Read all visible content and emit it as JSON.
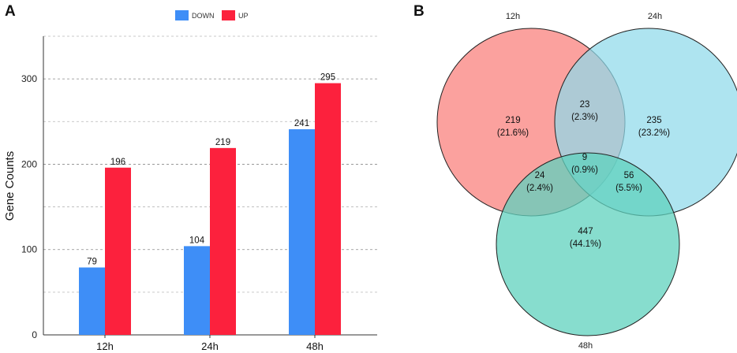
{
  "panels": {
    "a": "A",
    "b": "B"
  },
  "chart_data": [
    {
      "type": "bar",
      "panel": "A",
      "title": "",
      "xlabel": "",
      "ylabel": "Gene Counts",
      "ylim": [
        0,
        350
      ],
      "yticks": [
        0,
        100,
        200,
        300
      ],
      "grid": true,
      "legend_position": "top-center",
      "categories": [
        "12h",
        "24h",
        "48h"
      ],
      "series": [
        {
          "name": "DOWN",
          "color": "#3e8ef7",
          "values": [
            79,
            104,
            241
          ]
        },
        {
          "name": "UP",
          "color": "#fc213d",
          "values": [
            196,
            219,
            295
          ]
        }
      ]
    },
    {
      "type": "venn",
      "panel": "B",
      "sets": [
        {
          "name": "12h",
          "color": "#fa8783"
        },
        {
          "name": "24h",
          "color": "#8fd9ea"
        },
        {
          "name": "48h",
          "color": "#5fd2bd"
        }
      ],
      "regions": [
        {
          "id": "12h_only",
          "count": "219",
          "percent": "(21.6%)"
        },
        {
          "id": "24h_only",
          "count": "235",
          "percent": "(23.2%)"
        },
        {
          "id": "48h_only",
          "count": "447",
          "percent": "(44.1%)"
        },
        {
          "id": "12h_24h",
          "count": "23",
          "percent": "(2.3%)"
        },
        {
          "id": "12h_48h",
          "count": "24",
          "percent": "(2.4%)"
        },
        {
          "id": "24h_48h",
          "count": "56",
          "percent": "(5.5%)"
        },
        {
          "id": "all",
          "count": "9",
          "percent": "(0.9%)"
        }
      ]
    }
  ]
}
